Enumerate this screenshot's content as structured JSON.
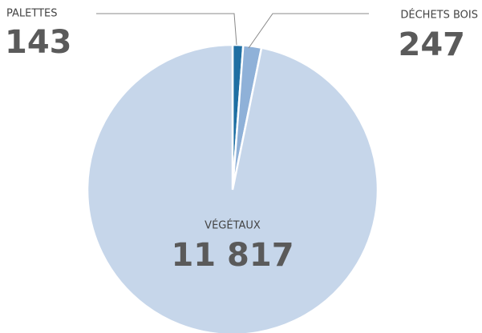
{
  "chart_data": {
    "type": "pie",
    "categories": [
      "PALETTES",
      "DÉCHETS BOIS",
      "VÉGÉTAUX"
    ],
    "values": [
      143,
      247,
      11817
    ],
    "value_labels": [
      "143",
      "247",
      "11 817"
    ],
    "colors": [
      "#1f6fa3",
      "#8fb1d8",
      "#c6d6ea"
    ]
  }
}
